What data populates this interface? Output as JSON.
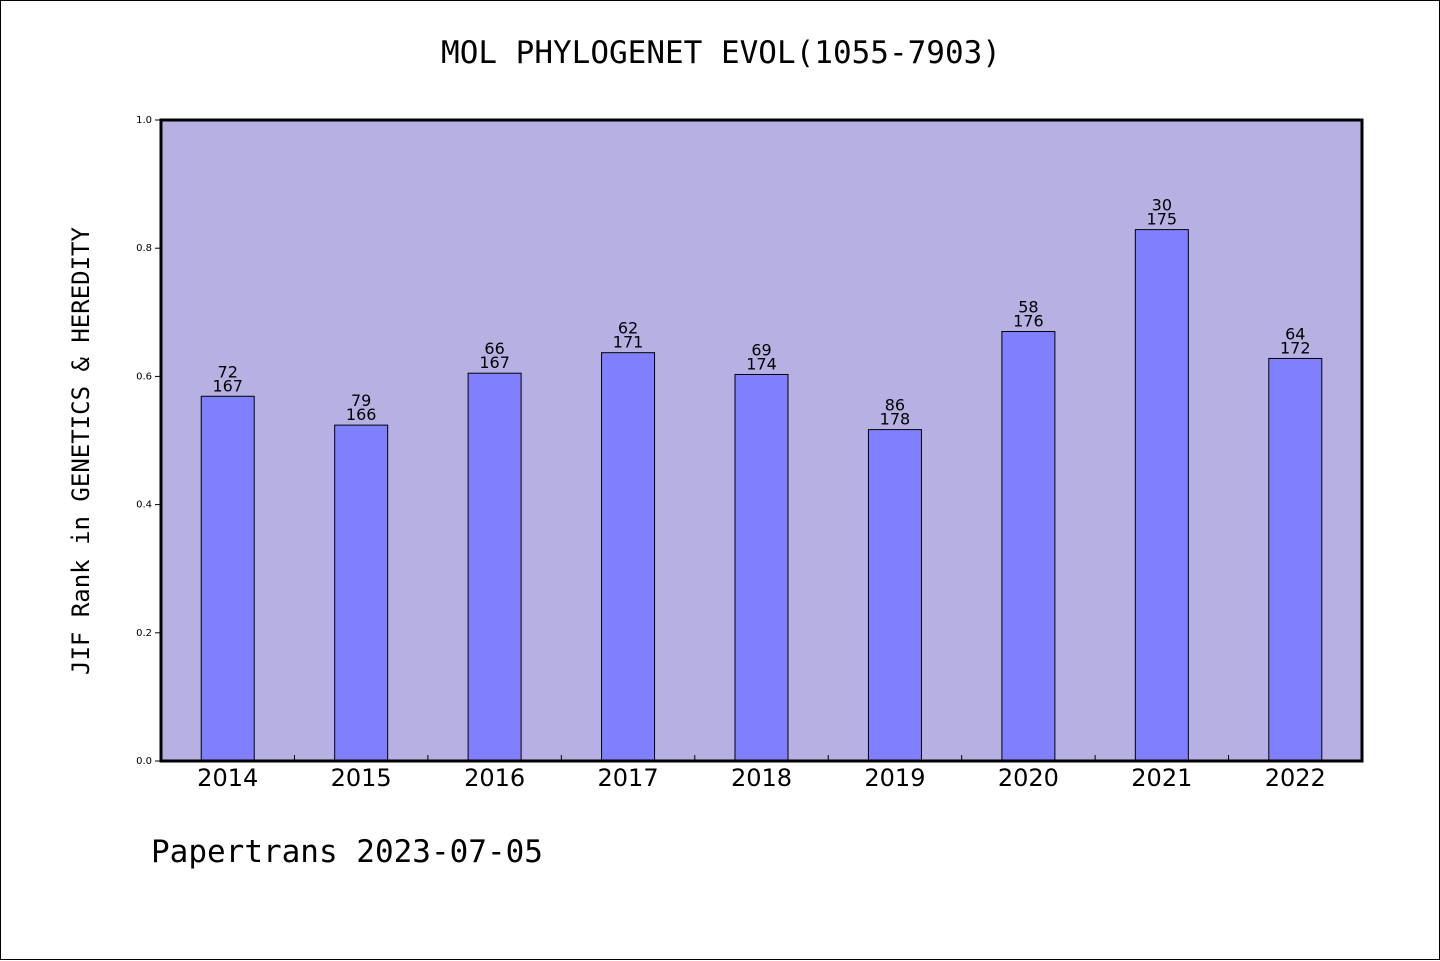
{
  "chart_data": {
    "type": "bar",
    "title": "MOL PHYLOGENET EVOL(1055-7903)",
    "ylabel": "JIF Rank in GENETICS & HEREDITY",
    "xlabel": "",
    "ylim": [
      0,
      1
    ],
    "yticks": [
      "0.0",
      "0.2",
      "0.4",
      "0.6",
      "0.8",
      "1.0"
    ],
    "categories": [
      "2014",
      "2015",
      "2016",
      "2017",
      "2018",
      "2019",
      "2020",
      "2021",
      "2022"
    ],
    "values": [
      0.569,
      0.524,
      0.605,
      0.637,
      0.603,
      0.517,
      0.67,
      0.829,
      0.628
    ],
    "ranks": [
      "72",
      "79",
      "66",
      "62",
      "69",
      "86",
      "58",
      "30",
      "64"
    ],
    "totals": [
      "167",
      "166",
      "167",
      "171",
      "174",
      "178",
      "176",
      "175",
      "172"
    ],
    "grid": false,
    "legend": "none",
    "colors": {
      "plot_bg": "#b7b1e3",
      "bar": "#8080ff",
      "bar_edge": "#000000"
    }
  },
  "footer": "Papertrans 2023-07-05"
}
